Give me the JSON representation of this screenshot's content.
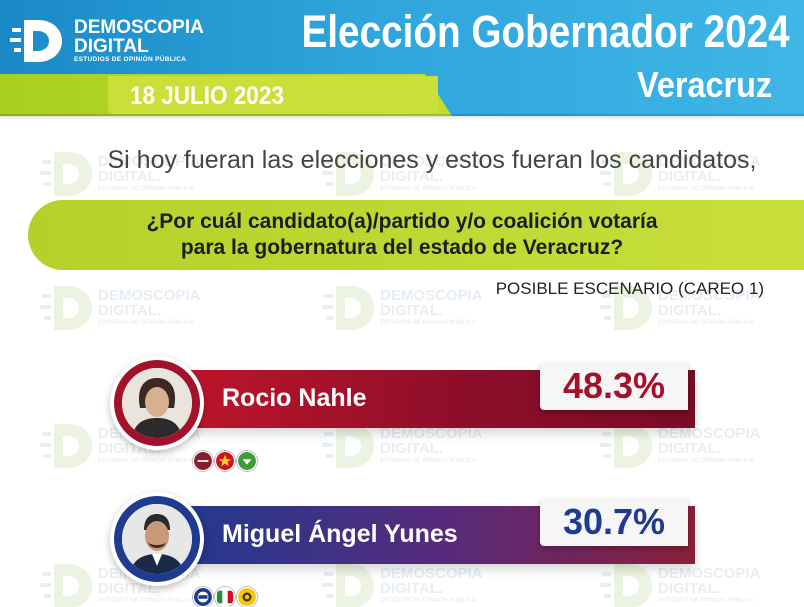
{
  "header": {
    "brand_name_line1": "DEMOSCOPIA",
    "brand_name_line2": "DIGITAL",
    "brand_tagline": "ESTUDIOS DE OPINIÓN PÚBLICA",
    "title": "Elección Gobernador 2024",
    "state": "Veracruz",
    "date": "18 JULIO 2023"
  },
  "watermark": {
    "line1": "DEMOSCOPIA",
    "line2": "DIGITAL.",
    "line3": "ESTUDIOS DE OPINIÓN PÚBLICA"
  },
  "intro": "Si hoy fueran las elecciones y estos fueran los candidatos,",
  "question_line1": "¿Por cuál candidato(a)/partido y/o coalición votaría",
  "question_line2": "para la gobernatura del estado de Veracruz?",
  "scenario": "POSIBLE ESCENARIO (CAREO 1)",
  "candidates": [
    {
      "name": "Rocio Nahle",
      "pct_label": "48.3%",
      "party_logos": [
        "morena-logo",
        "pt-logo",
        "pvem-logo"
      ]
    },
    {
      "name": "Miguel Ángel Yunes",
      "pct_label": "30.7%",
      "party_logos": [
        "pan-logo",
        "pri-logo",
        "prd-logo"
      ]
    }
  ],
  "colors": {
    "header_blue": "#2ea5dc",
    "accent_green": "#b4d12a",
    "bar_red": "#a3122a",
    "bar_blue": "#1f3a8f",
    "pct_red": "#a3122a",
    "pct_blue": "#1f3a8f"
  },
  "chart_data": {
    "type": "bar",
    "categories": [
      "Rocio Nahle",
      "Miguel Ángel Yunes"
    ],
    "values": [
      48.3,
      30.7
    ],
    "title": "¿Por cuál candidato(a)/partido y/o coalición votaría para la gobernatura del estado de Veracruz?",
    "subtitle": "POSIBLE ESCENARIO (CAREO 1)",
    "xlabel": "",
    "ylabel": "",
    "unit": "%"
  }
}
